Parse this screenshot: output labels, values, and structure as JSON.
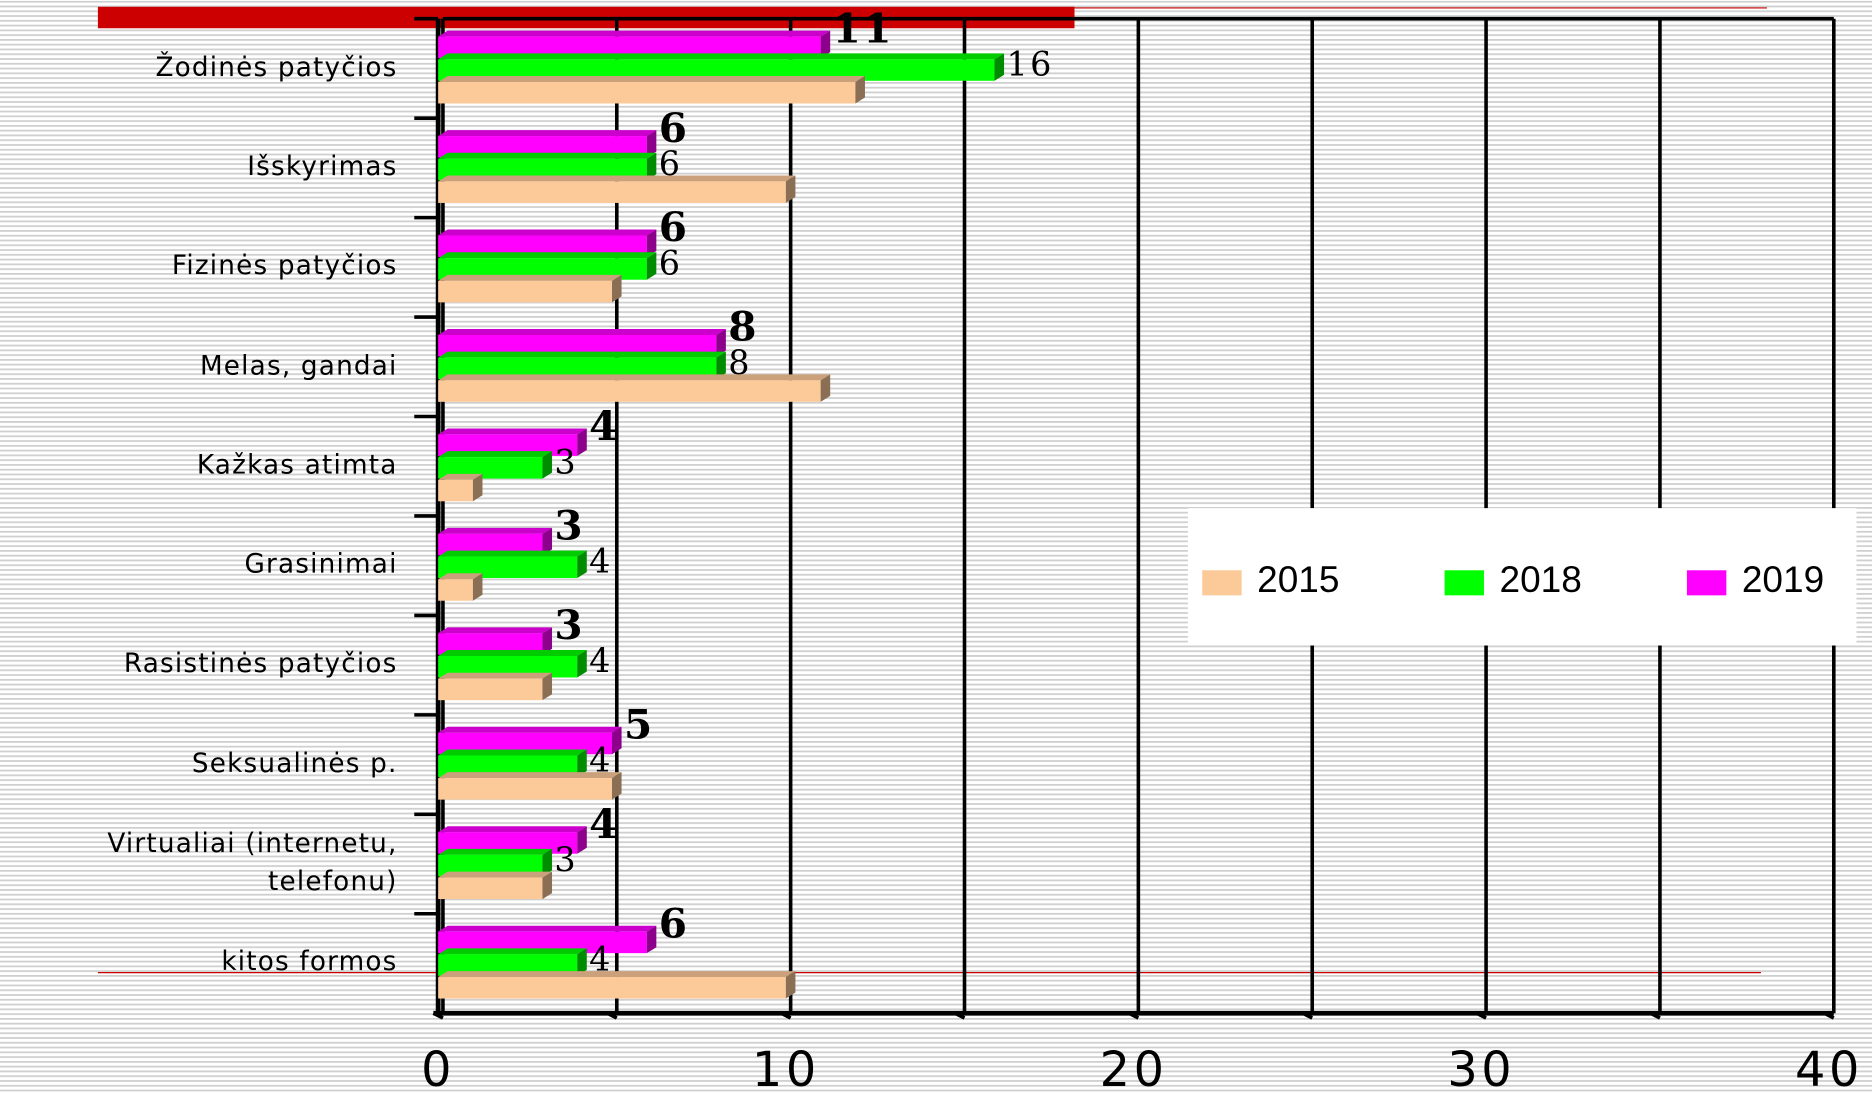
{
  "chart_data": {
    "type": "bar",
    "orientation": "horizontal",
    "categories": [
      "Žodinės patyčios",
      "Išskyrimas",
      "Fizinės patyčios",
      "Melas, gandai",
      "Kažkas atimta",
      "Grasinimai",
      "Rasistinės patyčios",
      "Seksualinės p.",
      "Virtualiai (internetu, telefonu)",
      "kitos formos"
    ],
    "series": [
      {
        "name": "2015",
        "color": "#fcc998",
        "values": [
          12,
          10,
          5,
          11,
          1,
          1,
          3,
          5,
          3,
          10
        ]
      },
      {
        "name": "2018",
        "color": "#00ff00",
        "values": [
          16,
          6,
          6,
          8,
          3,
          4,
          4,
          4,
          3,
          4
        ]
      },
      {
        "name": "2019",
        "color": "#ff00ff",
        "values": [
          11,
          6,
          6,
          8,
          4,
          3,
          3,
          5,
          4,
          6
        ]
      }
    ],
    "value_labels_shown": [
      "2018",
      "2019"
    ],
    "xlim": [
      0,
      40
    ],
    "xticks": [
      0,
      10,
      20,
      30,
      40
    ],
    "xminorticks": [
      5,
      15,
      25,
      35
    ],
    "grid": true,
    "legend": "right"
  }
}
